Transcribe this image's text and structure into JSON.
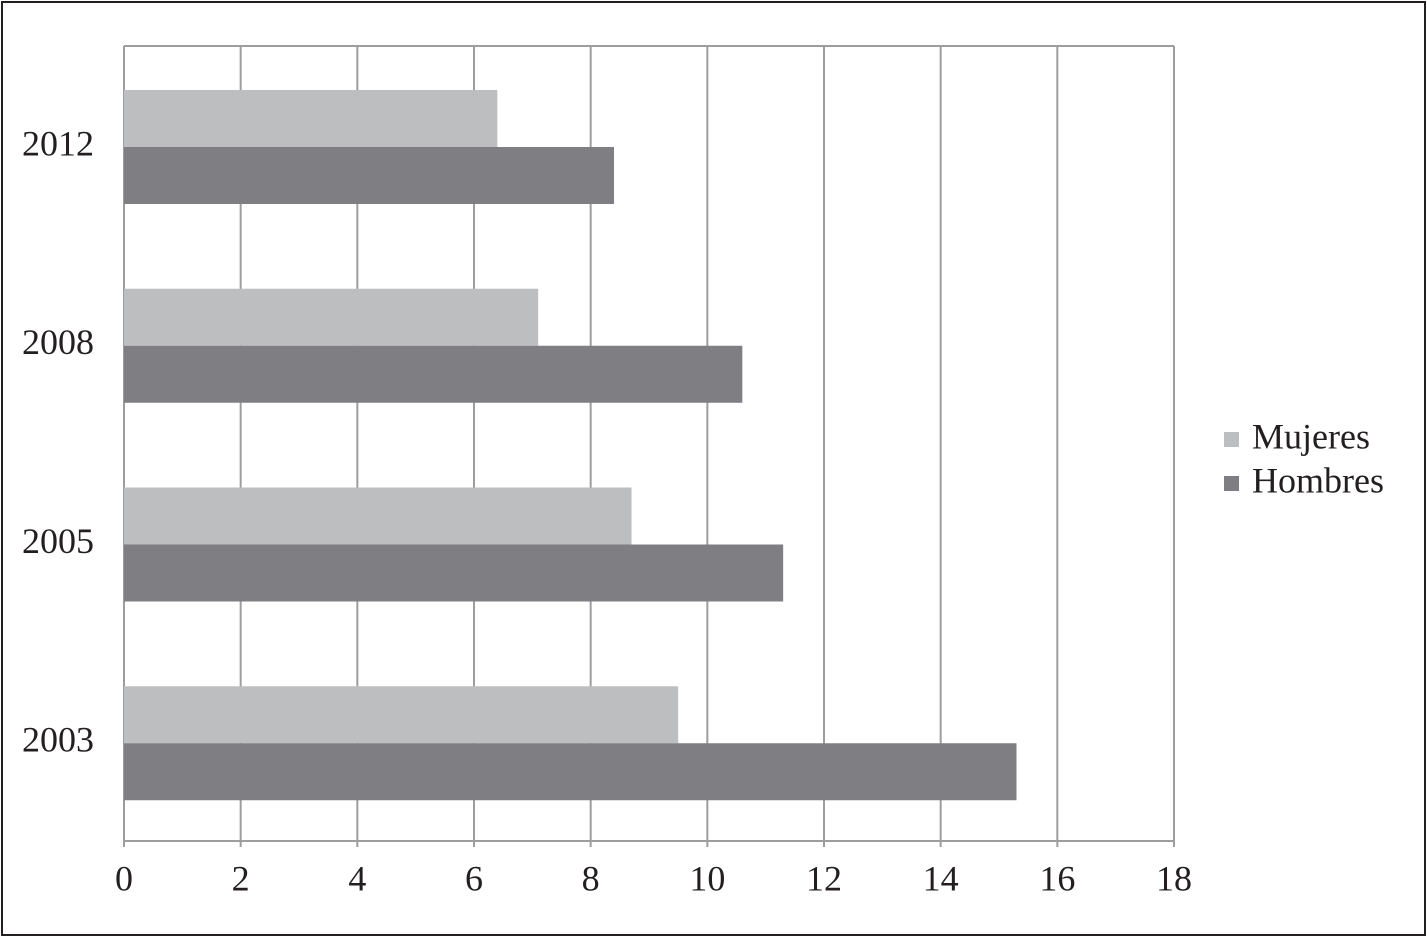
{
  "chart_data": {
    "type": "hbar",
    "categories": [
      "2012",
      "2008",
      "2005",
      "2003"
    ],
    "series": [
      {
        "name": "Mujeres",
        "color": "#bdbebf",
        "values": [
          6.4,
          7.1,
          8.7,
          9.5
        ]
      },
      {
        "name": "Hombres",
        "color": "#7f7f83",
        "values": [
          8.4,
          10.6,
          11.3,
          15.3
        ]
      }
    ],
    "xlim": [
      0,
      18
    ],
    "xticks": [
      0,
      2,
      4,
      6,
      8,
      10,
      12,
      14,
      16,
      18
    ],
    "grid": true,
    "legend": "right"
  }
}
